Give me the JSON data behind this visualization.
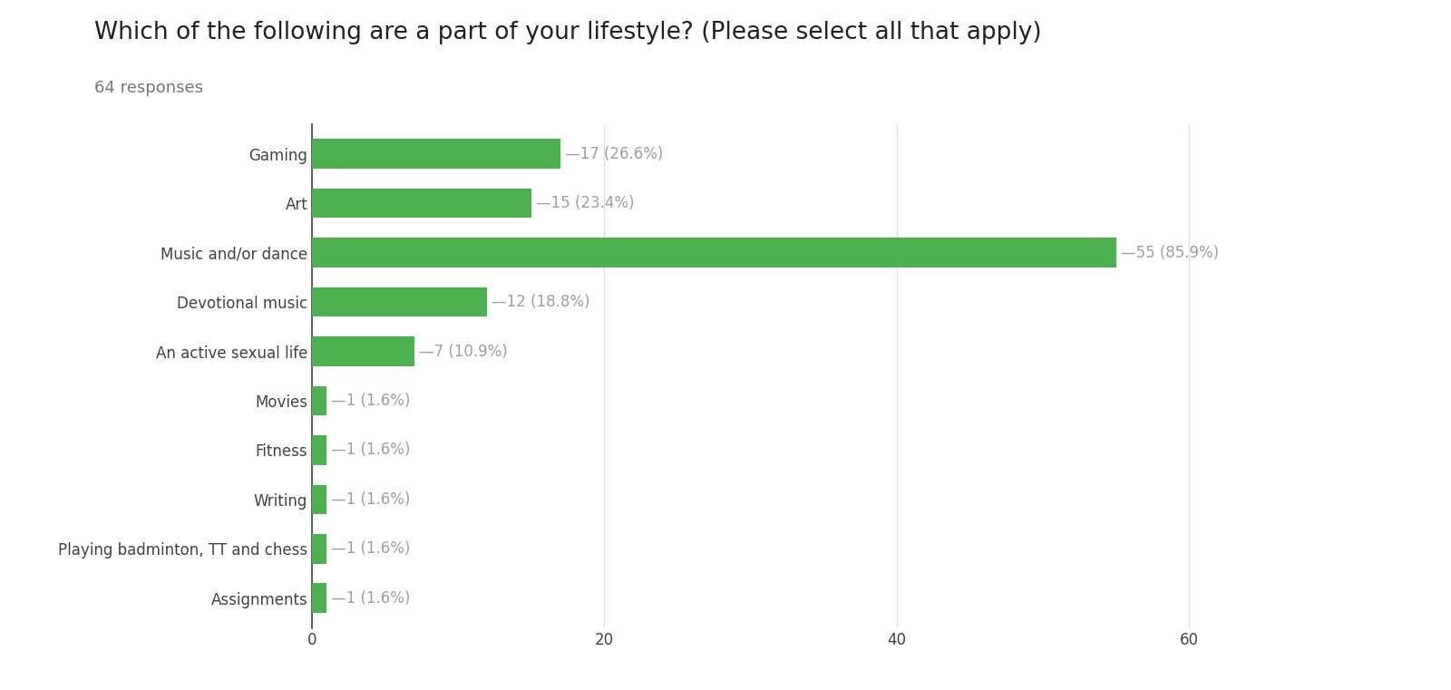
{
  "title": "Which of the following are a part of your lifestyle? (Please select all that apply)",
  "subtitle": "64 responses",
  "categories": [
    "Gaming",
    "Art",
    "Music and/or dance",
    "Devotional music",
    "An active sexual life",
    "Movies",
    "Fitness",
    "Writing",
    "Playing badminton, TT and chess",
    "Assignments"
  ],
  "values": [
    17,
    15,
    55,
    12,
    7,
    1,
    1,
    1,
    1,
    1
  ],
  "labels": [
    "17 (26.6%)",
    "15 (23.4%)",
    "55 (85.9%)",
    "12 (18.8%)",
    "7 (10.9%)",
    "1 (1.6%)",
    "1 (1.6%)",
    "1 (1.6%)",
    "1 (1.6%)",
    "1 (1.6%)"
  ],
  "bar_color": "#4caf50",
  "background_color": "#ffffff",
  "grid_color": "#e0e0e0",
  "title_fontsize": 19,
  "subtitle_fontsize": 13,
  "label_fontsize": 12,
  "tick_fontsize": 12,
  "xlim": [
    0,
    65
  ],
  "xticks": [
    0,
    20,
    40,
    60
  ],
  "title_color": "#212121",
  "subtitle_color": "#757575",
  "label_color": "#9e9e9e",
  "ytick_color": "#424242"
}
